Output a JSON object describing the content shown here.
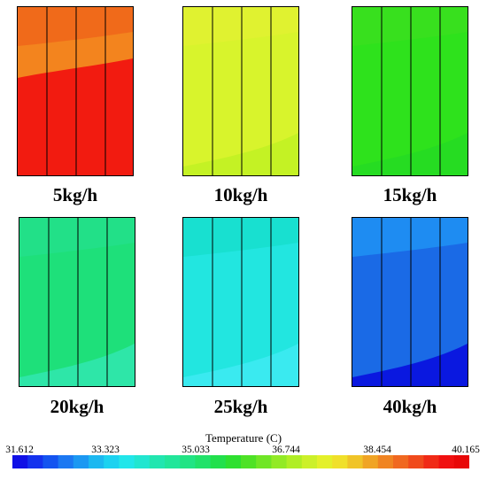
{
  "panels": [
    {
      "label": "5kg/h",
      "top_color": "#f06a1a",
      "mid_color": "#f3841e",
      "bottom_color": "#f21b10"
    },
    {
      "label": "10kg/h",
      "top_color": "#e0f230",
      "mid_color": "#d8f42c",
      "bottom_color": "#c4f224"
    },
    {
      "label": "15kg/h",
      "top_color": "#38e01e",
      "mid_color": "#2ee21c",
      "bottom_color": "#26dc22"
    },
    {
      "label": "20kg/h",
      "top_color": "#22e088",
      "mid_color": "#1ee07a",
      "bottom_color": "#2ee6a8"
    },
    {
      "label": "25kg/h",
      "top_color": "#18e0d0",
      "mid_color": "#22e6e0",
      "bottom_color": "#3aeaf0"
    },
    {
      "label": "40kg/h",
      "top_color": "#1e8cf2",
      "mid_color": "#1a6ae6",
      "bottom_color": "#0a18e0"
    }
  ],
  "legend": {
    "title": "Temperature (C)",
    "ticks": [
      "31.612",
      "33.323",
      "35.033",
      "36.744",
      "38.454",
      "40.165"
    ],
    "colors": [
      "#1010e6",
      "#1432ee",
      "#1454f0",
      "#1c78f2",
      "#1c98f2",
      "#1cb8f0",
      "#1cd2f0",
      "#22e6ea",
      "#22e6d0",
      "#22e6b0",
      "#22e69a",
      "#22e484",
      "#22e26a",
      "#22e04c",
      "#2ee030",
      "#4ee226",
      "#70e626",
      "#92ea26",
      "#b0ee26",
      "#ccf02a",
      "#e4f02a",
      "#f0e02a",
      "#f0c428",
      "#f0a424",
      "#f08422",
      "#f06820",
      "#f04a1c",
      "#f02a16",
      "#f01010",
      "#e80808"
    ]
  }
}
